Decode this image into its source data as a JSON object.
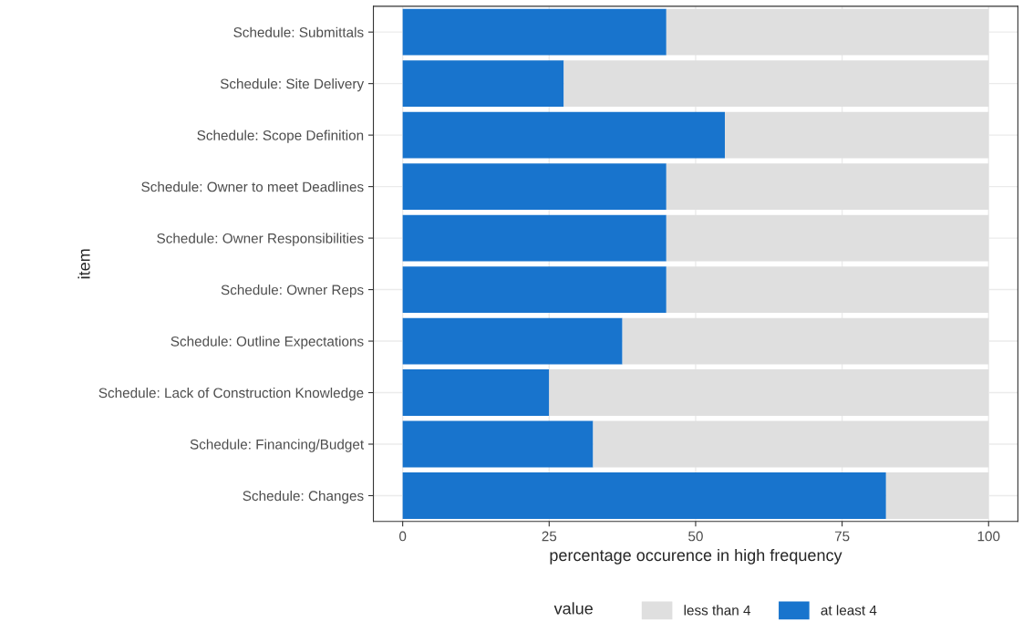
{
  "chart_data": {
    "type": "bar",
    "orientation": "horizontal",
    "stacked": true,
    "categories": [
      "Schedule: Submittals",
      "Schedule: Site Delivery",
      "Schedule: Scope Definition",
      "Schedule: Owner to meet Deadlines",
      "Schedule: Owner Responsibilities",
      "Schedule: Owner Reps",
      "Schedule: Outline Expectations",
      "Schedule: Lack of Construction Knowledge",
      "Schedule: Financing/Budget",
      "Schedule: Changes"
    ],
    "series": [
      {
        "name": "at least 4",
        "color": "#1874cd",
        "values": [
          45,
          27.5,
          55,
          45,
          45,
          45,
          37.5,
          25,
          32.5,
          82.5
        ]
      },
      {
        "name": "less than 4",
        "color": "#dfdfdf",
        "values": [
          55,
          72.5,
          45,
          55,
          55,
          55,
          62.5,
          75,
          67.5,
          17.5
        ]
      }
    ],
    "xlim": [
      -5,
      105
    ],
    "xticks": [
      0,
      25,
      50,
      75,
      100
    ],
    "xlabel": "percentage occurence in high frequency",
    "ylabel": "item",
    "legend_title": "value",
    "legend": "bottom",
    "grid": true
  }
}
